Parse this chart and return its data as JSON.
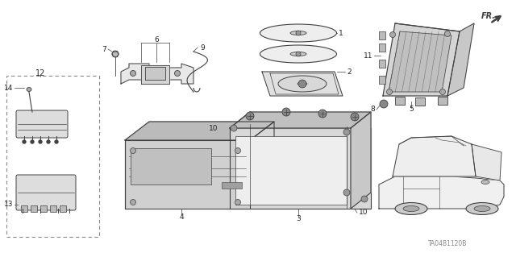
{
  "bg_color": "#ffffff",
  "line_color": "#404040",
  "label_color": "#222222",
  "fig_width": 6.4,
  "fig_height": 3.19,
  "dpi": 100,
  "watermark": "TA04B1120B",
  "fr_label": "Fr."
}
